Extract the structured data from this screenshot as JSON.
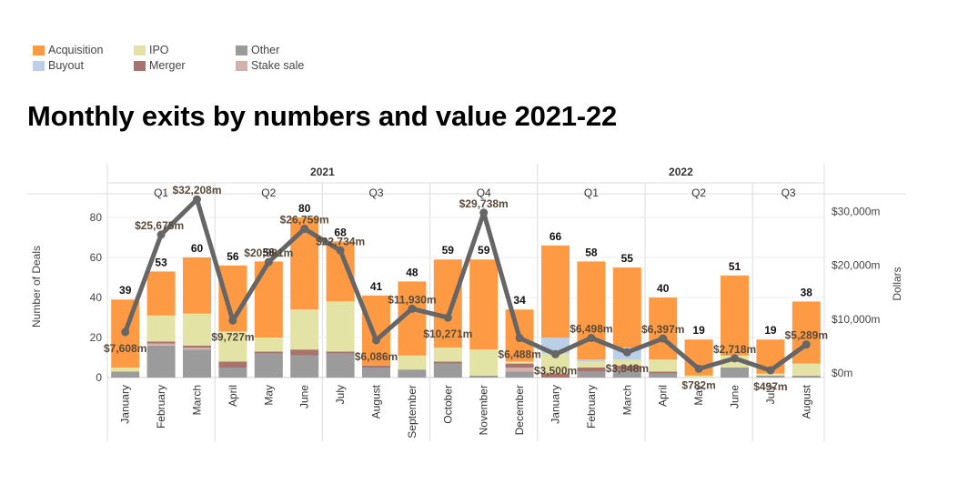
{
  "legend": {
    "items": [
      {
        "label": "Acquisition",
        "color": "#fd9a43"
      },
      {
        "label": "Buyout",
        "color": "#bccfe8"
      },
      {
        "label": "IPO",
        "color": "#e2e3a5"
      },
      {
        "label": "Merger",
        "color": "#a8736e"
      },
      {
        "label": "Other",
        "color": "#9b9b9b"
      },
      {
        "label": "Stake sale",
        "color": "#d4b0ab"
      }
    ]
  },
  "title": "Monthly exits by numbers and value 2021-22",
  "chart_data": {
    "type": "bar",
    "title": "Monthly exits by numbers and value 2021-22",
    "ylabel": "Number of Deals",
    "y2label": "Dollars",
    "ylim": [
      0,
      88
    ],
    "y2lim": [
      0,
      33000
    ],
    "yticks": [
      "0",
      "20",
      "40",
      "60",
      "80"
    ],
    "y2ticks": [
      "$0m",
      "$10,000m",
      "$20,000m",
      "$30,000m"
    ],
    "years": [
      {
        "label": "2021",
        "span": [
          0,
          12
        ]
      },
      {
        "label": "2022",
        "span": [
          12,
          20
        ]
      }
    ],
    "quarters": [
      {
        "label": "Q1",
        "span": [
          0,
          3
        ]
      },
      {
        "label": "Q2",
        "span": [
          3,
          6
        ]
      },
      {
        "label": "Q3",
        "span": [
          6,
          9
        ]
      },
      {
        "label": "Q4",
        "span": [
          9,
          12
        ]
      },
      {
        "label": "Q1",
        "span": [
          12,
          15
        ]
      },
      {
        "label": "Q2",
        "span": [
          15,
          18
        ]
      },
      {
        "label": "Q3",
        "span": [
          18,
          20
        ]
      }
    ],
    "categories": [
      "January",
      "February",
      "March",
      "April",
      "May",
      "June",
      "July",
      "August",
      "September",
      "October",
      "November",
      "December",
      "January",
      "February",
      "March",
      "April",
      "May",
      "June",
      "July",
      "August"
    ],
    "stack_order": [
      "Other",
      "Stake sale",
      "Merger",
      "IPO",
      "Buyout",
      "Acquisition"
    ],
    "series": [
      {
        "name": "Other",
        "color": "#9b9b9b",
        "values": [
          3,
          16,
          14,
          5,
          12,
          11,
          12,
          5,
          4,
          7,
          1,
          3,
          0,
          3,
          4,
          2,
          0,
          5,
          1,
          1
        ]
      },
      {
        "name": "Stake sale",
        "color": "#d4b0ab",
        "values": [
          0,
          1,
          1,
          0,
          0,
          0,
          0,
          0,
          0,
          0,
          0,
          2,
          0,
          0,
          0,
          0,
          0,
          0,
          0,
          0
        ]
      },
      {
        "name": "Merger",
        "color": "#a8736e",
        "values": [
          0,
          1,
          1,
          3,
          1,
          3,
          1,
          1,
          0,
          1,
          0,
          2,
          2,
          2,
          2,
          1,
          0,
          0,
          0,
          0
        ]
      },
      {
        "name": "IPO",
        "color": "#e2e3a5",
        "values": [
          2,
          13,
          16,
          15,
          7,
          20,
          25,
          0,
          7,
          7,
          13,
          1,
          10,
          3,
          3,
          6,
          1,
          6,
          1,
          6
        ]
      },
      {
        "name": "Buyout",
        "color": "#bccfe8",
        "values": [
          0,
          0,
          0,
          0,
          0,
          0,
          0,
          0,
          0,
          0,
          0,
          0,
          8,
          1,
          6,
          0,
          0,
          0,
          0,
          0
        ]
      },
      {
        "name": "Acquisition",
        "color": "#fd9a43",
        "values": [
          34,
          22,
          28,
          33,
          38,
          46,
          30,
          35,
          37,
          44,
          45,
          26,
          46,
          49,
          40,
          31,
          18,
          40,
          17,
          31
        ]
      }
    ],
    "totals": [
      39,
      53,
      60,
      56,
      58,
      80,
      68,
      41,
      48,
      59,
      59,
      34,
      66,
      58,
      55,
      40,
      19,
      51,
      19,
      38
    ],
    "value_series": {
      "name": "Dollars",
      "color": "#666666",
      "values": [
        7608,
        25675,
        32208,
        9727,
        20581,
        26759,
        22734,
        6086,
        11930,
        10271,
        29738,
        6488,
        3500,
        6498,
        3848,
        6397,
        782,
        2718,
        497,
        5289
      ],
      "labels": [
        "$7,608m",
        "$25,675m",
        "$32,208m",
        "$9,727m",
        "$20,581m",
        "$26,759m",
        "$22,734m",
        "$6,086m",
        "$11,930m",
        "$10,271m",
        "$29,738m",
        "$6,488m",
        "$3,500m",
        "$6,498m",
        "$3,848m",
        "$6,397m",
        "$782m",
        "$2,718m",
        "$497m",
        "$5,289m"
      ]
    },
    "grid": true
  }
}
